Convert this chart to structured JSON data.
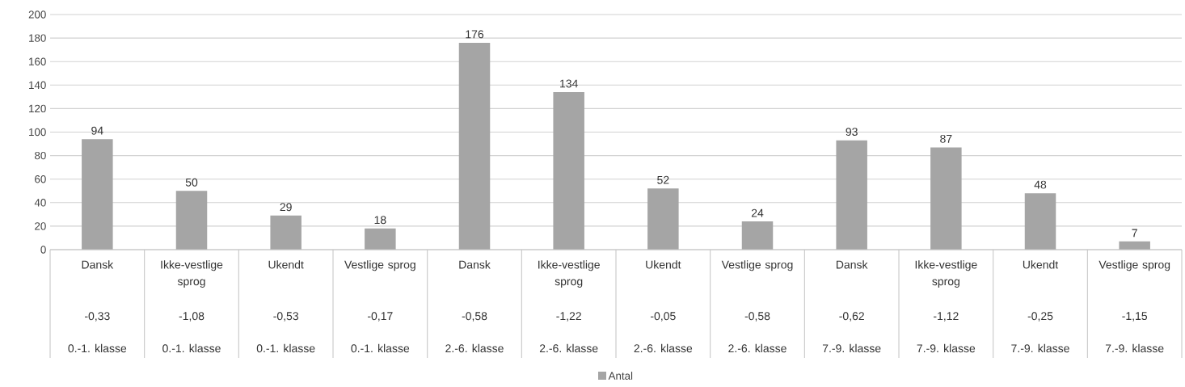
{
  "chart_data": {
    "type": "bar",
    "categories": [
      "Dansk",
      "Ikke-vestlige sprog",
      "Ukendt",
      "Vestlige sprog",
      "Dansk",
      "Ikke-vestlige sprog",
      "Ukendt",
      "Vestlige sprog",
      "Dansk",
      "Ikke-vestlige sprog",
      "Ukendt",
      "Vestlige sprog"
    ],
    "series": [
      {
        "name": "Antal",
        "color": "#a5a5a5",
        "values": [
          94,
          50,
          29,
          18,
          176,
          134,
          52,
          24,
          93,
          87,
          48,
          7
        ]
      }
    ],
    "annotations": [
      "-0,33",
      "-1,08",
      "-0,53",
      "-0,17",
      "-0,58",
      "-1,22",
      "-0,05",
      "-0,58",
      "-0,62",
      "-1,12",
      "-0,25",
      "-1,15",
      "0.-1. klasse",
      "0.-1. klasse",
      "0.-1. klasse",
      "0.-1. klasse",
      "2.-6. klasse",
      "2.-6. klasse",
      "2.-6. klasse",
      "2.-6. klasse",
      "7.-9. klasse",
      "7.-9. klasse",
      "7.-9. klasse",
      "7.-9. klasse"
    ],
    "ylim": [
      0,
      200
    ],
    "yticks": [
      0,
      20,
      40,
      60,
      80,
      100,
      120,
      140,
      160,
      180,
      200
    ],
    "grid": "y",
    "data_labels": true,
    "legend": "bottom"
  }
}
